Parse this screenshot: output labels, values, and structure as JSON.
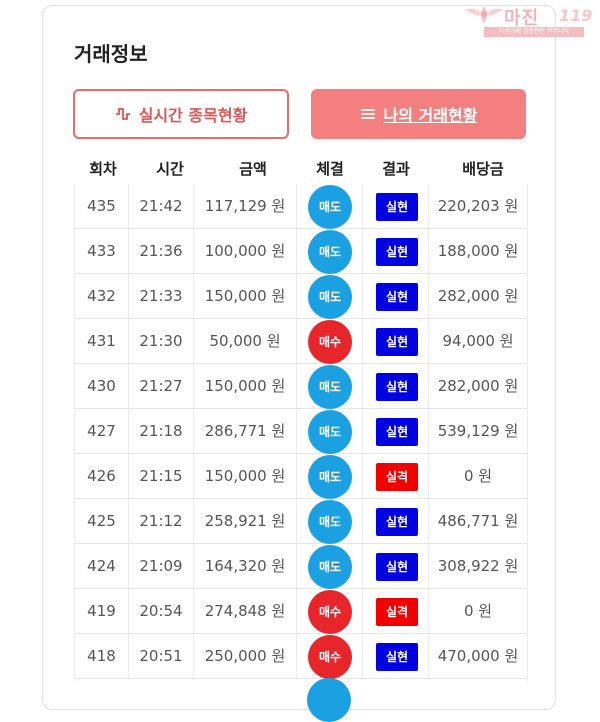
{
  "watermark": {
    "title": "마진",
    "number": "119",
    "tagline": "마진거래 검증전문 커뮤니티"
  },
  "panel": {
    "title": "거래정보",
    "realtime_button": "실시간 종목현황",
    "mytrades_button": "나의 거래현황"
  },
  "table": {
    "headers": {
      "round": "회차",
      "time": "시간",
      "amount": "금액",
      "execution": "체결",
      "result": "결과",
      "dividend": "배당금"
    },
    "rows": [
      {
        "round": "435",
        "time": "21:42",
        "amount": "117,129 원",
        "execution": "매도",
        "result": "실현",
        "dividend": "220,203 원"
      },
      {
        "round": "433",
        "time": "21:36",
        "amount": "100,000 원",
        "execution": "매도",
        "result": "실현",
        "dividend": "188,000 원"
      },
      {
        "round": "432",
        "time": "21:33",
        "amount": "150,000 원",
        "execution": "매도",
        "result": "실현",
        "dividend": "282,000 원"
      },
      {
        "round": "431",
        "time": "21:30",
        "amount": "50,000 원",
        "execution": "매수",
        "result": "실현",
        "dividend": "94,000 원"
      },
      {
        "round": "430",
        "time": "21:27",
        "amount": "150,000 원",
        "execution": "매도",
        "result": "실현",
        "dividend": "282,000 원"
      },
      {
        "round": "427",
        "time": "21:18",
        "amount": "286,771 원",
        "execution": "매도",
        "result": "실현",
        "dividend": "539,129 원"
      },
      {
        "round": "426",
        "time": "21:15",
        "amount": "150,000 원",
        "execution": "매도",
        "result": "실격",
        "dividend": "0 원"
      },
      {
        "round": "425",
        "time": "21:12",
        "amount": "258,921 원",
        "execution": "매도",
        "result": "실현",
        "dividend": "486,771 원"
      },
      {
        "round": "424",
        "time": "21:09",
        "amount": "164,320 원",
        "execution": "매도",
        "result": "실현",
        "dividend": "308,922 원"
      },
      {
        "round": "419",
        "time": "20:54",
        "amount": "274,848 원",
        "execution": "매수",
        "result": "실격",
        "dividend": "0 원"
      },
      {
        "round": "418",
        "time": "20:51",
        "amount": "250,000 원",
        "execution": "매수",
        "result": "실현",
        "dividend": "470,000 원"
      }
    ]
  },
  "colors": {
    "sell": "#1ba1e2",
    "buy": "#e6262b",
    "realized": "#0000e0",
    "disqualified": "#f00000",
    "accent": "#f37f7f"
  }
}
